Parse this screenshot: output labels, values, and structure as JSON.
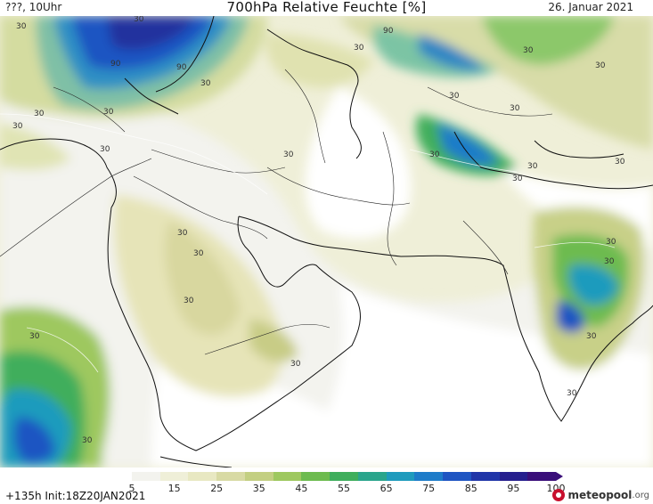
{
  "header": {
    "left_label": "???, 10Uhr",
    "title": "700hPa Relative Feuchte [%]",
    "date": "26. Januar 2021"
  },
  "footer": {
    "run_info": "+135h Init:18Z20JAN2021",
    "brand_name": "meteopool",
    "brand_tld": ".org"
  },
  "legend": {
    "ticks": [
      "5",
      "15",
      "25",
      "35",
      "45",
      "55",
      "65",
      "75",
      "85",
      "95",
      "100"
    ],
    "colors": [
      "#ffffff",
      "#f3f3ee",
      "#efefd8",
      "#e8e8c2",
      "#d8daa4",
      "#c3cf82",
      "#9ec85f",
      "#6dbb4f",
      "#3fae5c",
      "#2aa58c",
      "#1f9bbd",
      "#1e7cc9",
      "#1f55c2",
      "#2035a8",
      "#261f8e",
      "#3a0f7a"
    ]
  },
  "map": {
    "contour_labels": [
      "30",
      "30",
      "30",
      "30",
      "30",
      "30",
      "30",
      "30",
      "30",
      "30",
      "30",
      "30",
      "30",
      "30",
      "30",
      "30",
      "30",
      "30",
      "30",
      "30",
      "30",
      "30",
      "30",
      "30",
      "30",
      "30",
      "90",
      "90",
      "90"
    ]
  }
}
